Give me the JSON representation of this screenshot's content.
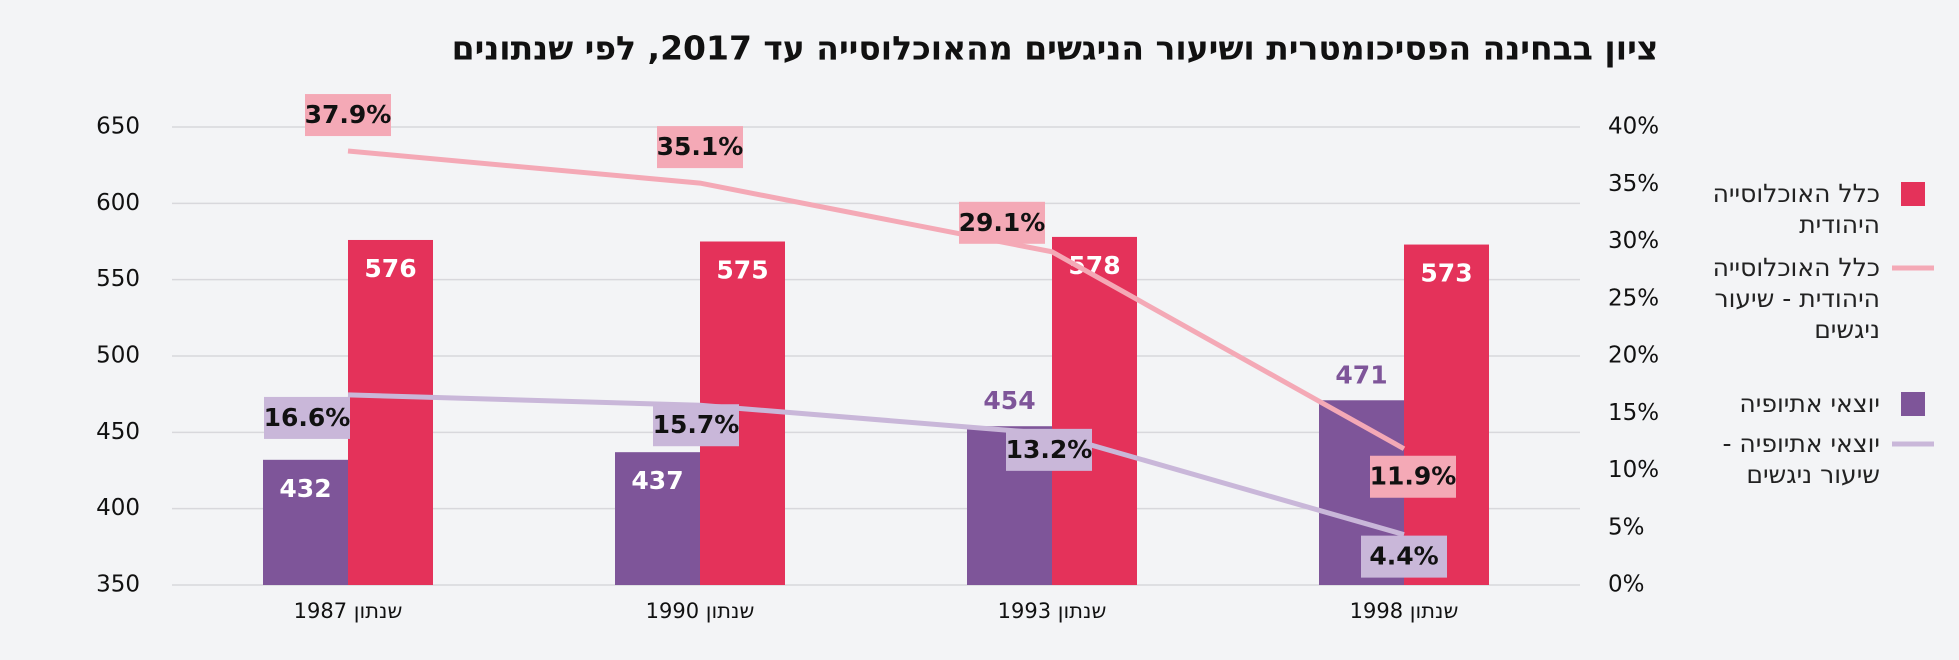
{
  "chart_data": {
    "type": "bar",
    "title": "ציון בבחינה הפסיכומטרית ושיעור הניגשים מהאוכלוסייה עד 2017, לפי שנתונים",
    "categories": [
      "שנתון 1987",
      "שנתון 1990",
      "שנתון 1993",
      "שנתון 1998"
    ],
    "series": [
      {
        "name": "כלל האוכלוסייה היהודית",
        "type": "bar",
        "color": "#e4325a",
        "values": [
          576,
          575,
          578,
          573
        ]
      },
      {
        "name": "כלל האוכלוסייה היהודית - שיעור ניגשים",
        "type": "line",
        "axis": "y2",
        "color": "#f4a9b6",
        "values": [
          37.9,
          35.1,
          29.1,
          11.9
        ],
        "value_labels": [
          "37.9%",
          "35.1%",
          "29.1%",
          "11.9%"
        ]
      },
      {
        "name": "יוצאי אתיופיה",
        "type": "bar",
        "color": "#7e5599",
        "values": [
          432,
          437,
          454,
          471
        ]
      },
      {
        "name": "יוצאי אתיופיה - שיעור ניגשים",
        "type": "line",
        "axis": "y2",
        "color": "#c9b7d9",
        "values": [
          16.6,
          15.7,
          13.2,
          4.4
        ],
        "value_labels": [
          "16.6%",
          "15.7%",
          "13.2%",
          "4.4%"
        ]
      }
    ],
    "ylim": [
      350,
      650
    ],
    "yticks": [
      350,
      400,
      450,
      500,
      550,
      600,
      650
    ],
    "y2lim": [
      0,
      40
    ],
    "y2ticks": [
      {
        "value": 0,
        "label": "0%"
      },
      {
        "value": 5,
        "label": "5%"
      },
      {
        "value": 10,
        "label": "10%"
      },
      {
        "value": 15,
        "label": "15%"
      },
      {
        "value": 20,
        "label": "20%"
      },
      {
        "value": 25,
        "label": "25%"
      },
      {
        "value": 30,
        "label": "30%"
      },
      {
        "value": 35,
        "label": "35%"
      },
      {
        "value": 40,
        "label": "40%"
      }
    ],
    "grid": true,
    "legend": "right"
  }
}
